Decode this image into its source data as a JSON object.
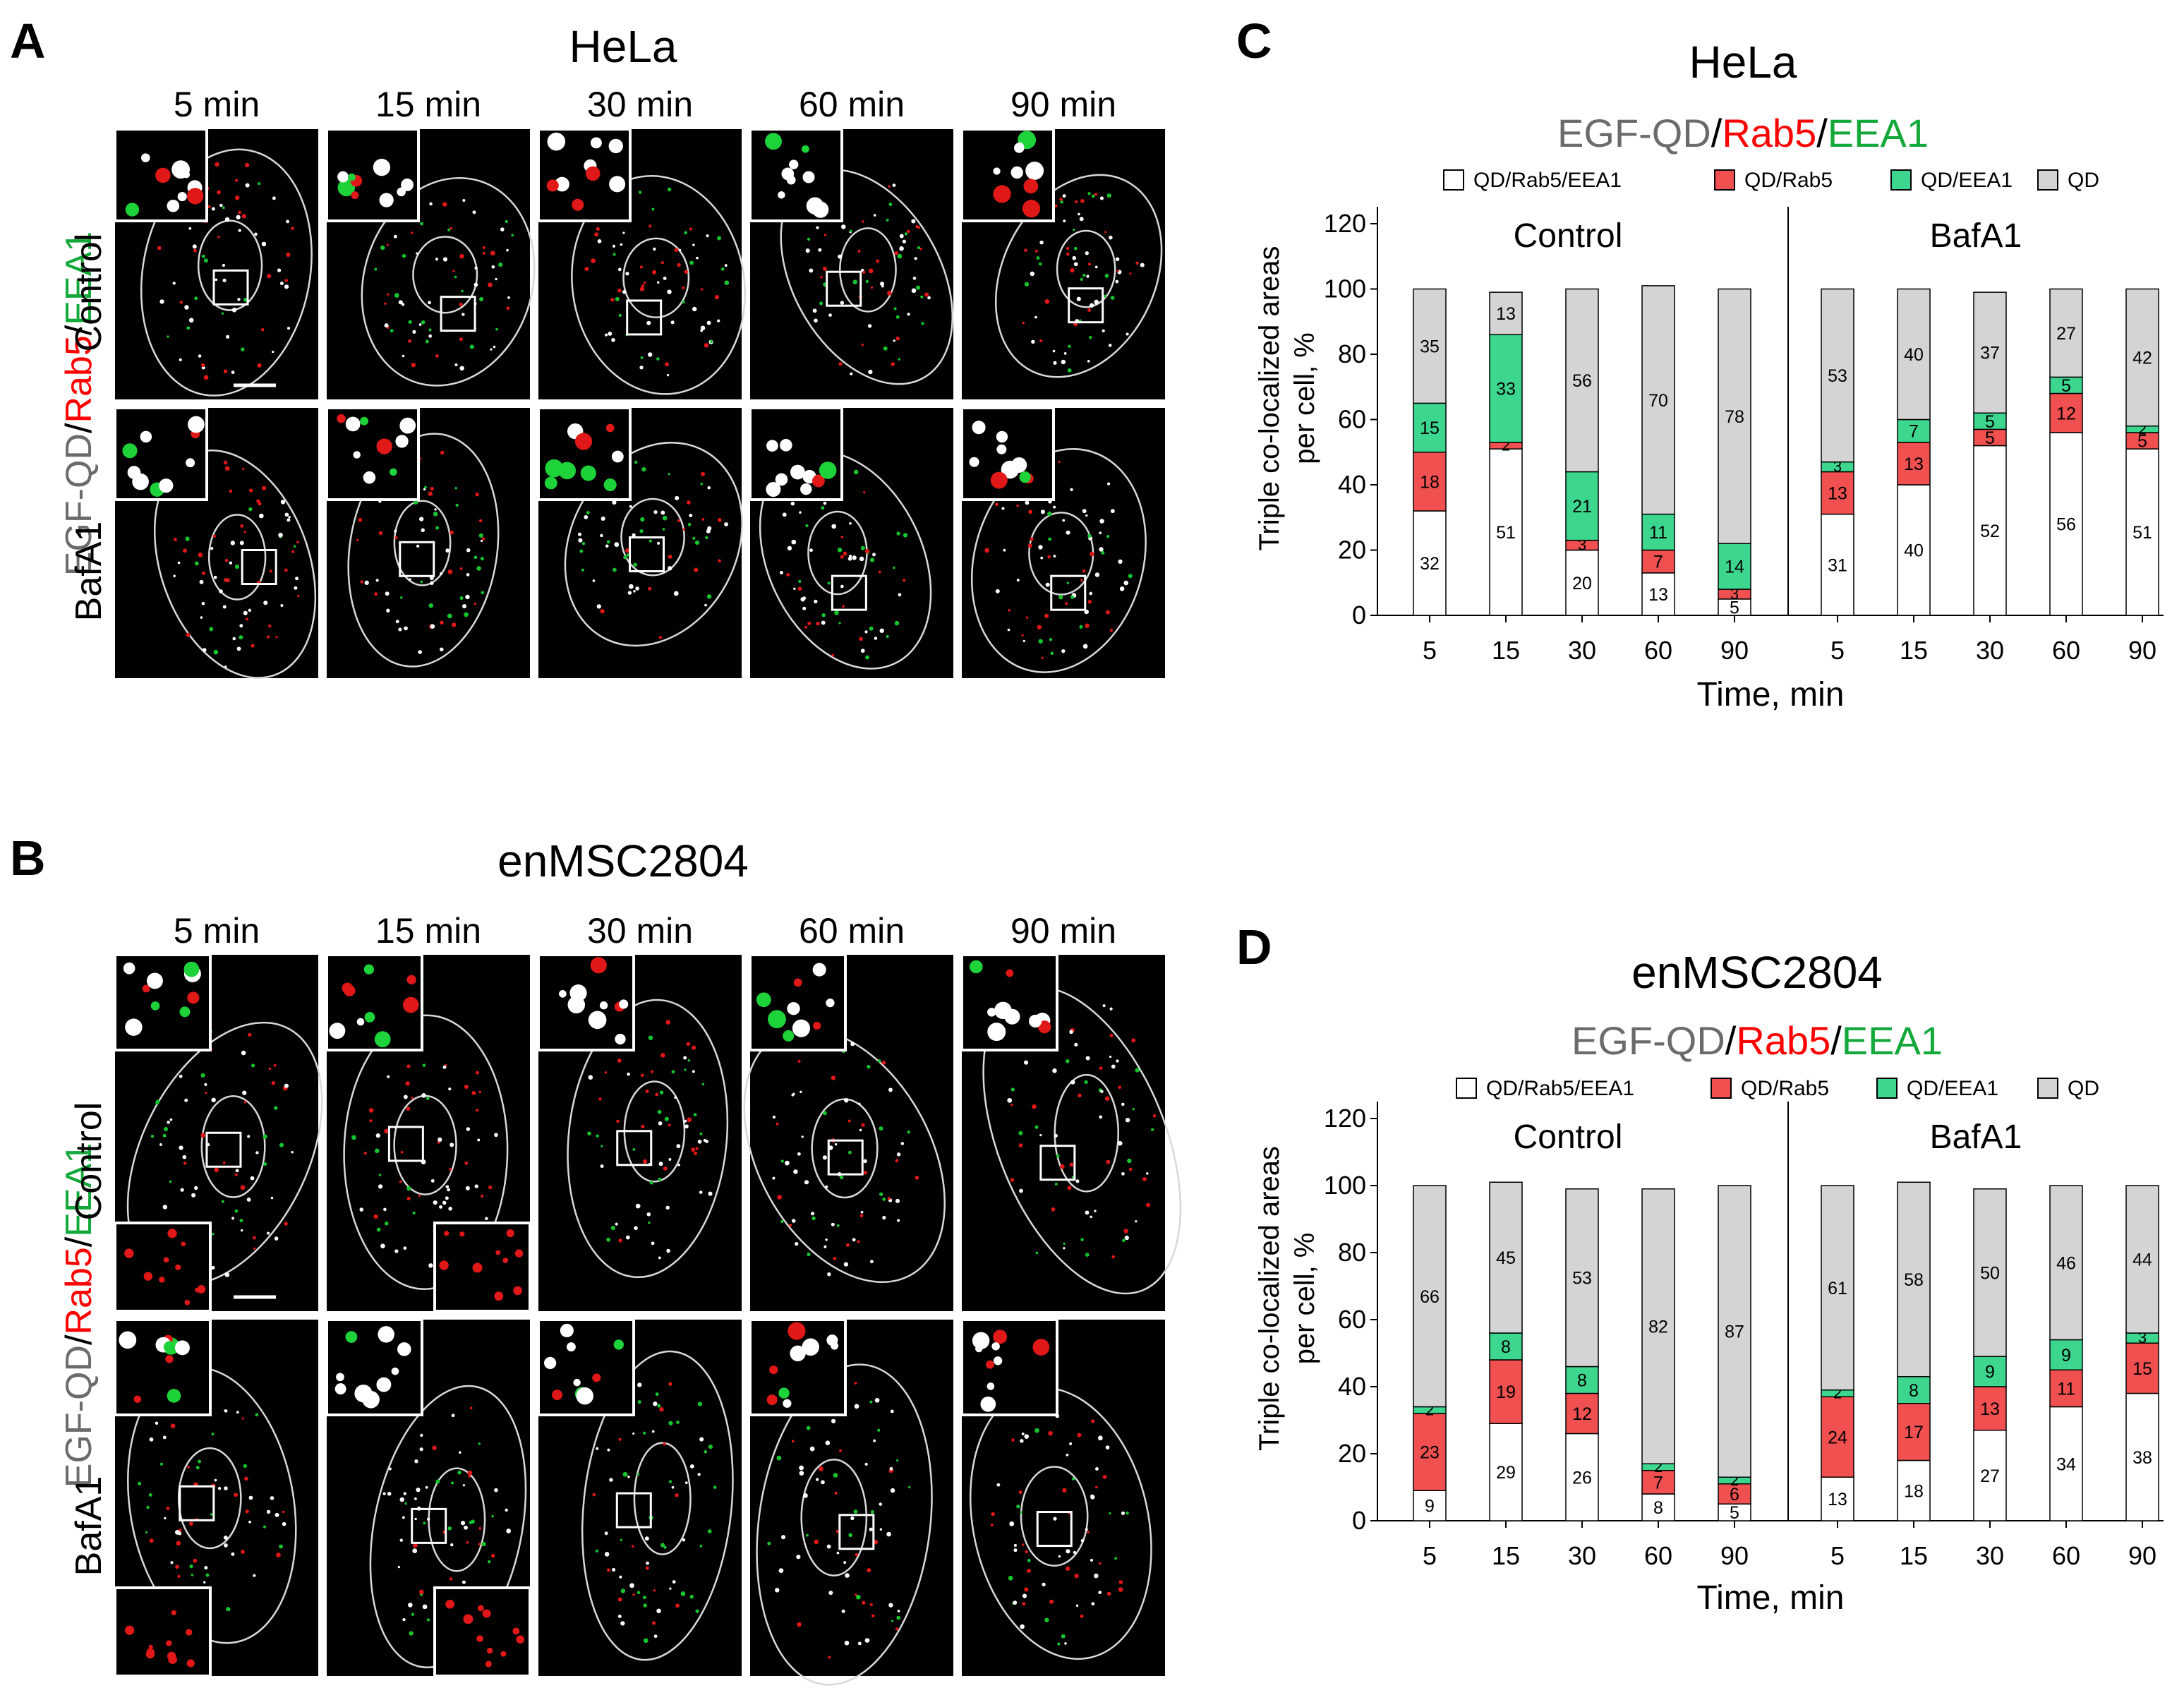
{
  "colors": {
    "grey": "#6b6b6b",
    "red": "#ff0000",
    "green": "#14a83b",
    "seg_white": "#ffffff",
    "seg_red": "#f05050",
    "seg_green": "#3dd68f",
    "seg_grey": "#d4d4d4",
    "micro_bg": "#000000",
    "outline": "#d9d9d9"
  },
  "panels": {
    "a": {
      "letter": "A",
      "title": "HeLa",
      "times": [
        "5 min",
        "15 min",
        "30 min",
        "60 min",
        "90 min"
      ],
      "rows": [
        "Control",
        "BafA1"
      ]
    },
    "b": {
      "letter": "B",
      "title": "enMSC2804",
      "times": [
        "5 min",
        "15 min",
        "30 min",
        "60 min",
        "90 min"
      ],
      "rows": [
        "Control",
        "BafA1"
      ]
    },
    "c": {
      "letter": "C"
    },
    "d": {
      "letter": "D"
    }
  },
  "stain_label": {
    "part1": "EGF-QD",
    "sep": "/",
    "part2": "Rab5",
    "part3": "EEA1"
  },
  "chart_data": [
    {
      "type": "bar",
      "stacked": true,
      "title": "HeLa",
      "subtitle": {
        "part1": "EGF-QD",
        "sep": "/",
        "part2": "Rab5",
        "part3": "EEA1"
      },
      "xlabel": "Time, min",
      "ylabel_line1": "Triple co-localized areas",
      "ylabel_line2": "per cell, %",
      "ylim": [
        0,
        120
      ],
      "yticks": [
        "0",
        "20",
        "40",
        "60",
        "80",
        "100",
        "120"
      ],
      "legend": [
        "QD/Rab5/EEA1",
        "QD/Rab5",
        "QD/EEA1",
        "QD"
      ],
      "legend_position": "top",
      "groups": [
        {
          "name": "Control",
          "categories": [
            "5",
            "15",
            "30",
            "60",
            "90"
          ],
          "series": [
            {
              "name": "QD/Rab5/EEA1",
              "values": [
                32,
                51,
                20,
                13,
                5
              ]
            },
            {
              "name": "QD/Rab5",
              "values": [
                18,
                2,
                3,
                7,
                3
              ]
            },
            {
              "name": "QD/EEA1",
              "values": [
                15,
                33,
                21,
                11,
                14
              ]
            },
            {
              "name": "QD",
              "values": [
                35,
                13,
                56,
                70,
                78
              ]
            }
          ]
        },
        {
          "name": "BafA1",
          "categories": [
            "5",
            "15",
            "30",
            "60",
            "90"
          ],
          "series": [
            {
              "name": "QD/Rab5/EEA1",
              "values": [
                31,
                40,
                52,
                56,
                51
              ]
            },
            {
              "name": "QD/Rab5",
              "values": [
                13,
                13,
                5,
                12,
                5
              ]
            },
            {
              "name": "QD/EEA1",
              "values": [
                3,
                7,
                5,
                5,
                2
              ]
            },
            {
              "name": "QD",
              "values": [
                53,
                40,
                37,
                27,
                42
              ]
            }
          ]
        }
      ]
    },
    {
      "type": "bar",
      "stacked": true,
      "title": "enMSC2804",
      "subtitle": {
        "part1": "EGF-QD",
        "sep": "/",
        "part2": "Rab5",
        "part3": "EEA1"
      },
      "xlabel": "Time, min",
      "ylabel_line1": "Triple co-localized areas",
      "ylabel_line2": "per cell, %",
      "ylim": [
        0,
        120
      ],
      "yticks": [
        "0",
        "20",
        "40",
        "60",
        "80",
        "100",
        "120"
      ],
      "legend": [
        "QD/Rab5/EEA1",
        "QD/Rab5",
        "QD/EEA1",
        "QD"
      ],
      "legend_position": "top",
      "groups": [
        {
          "name": "Control",
          "categories": [
            "5",
            "15",
            "30",
            "60",
            "90"
          ],
          "series": [
            {
              "name": "QD/Rab5/EEA1",
              "values": [
                9,
                29,
                26,
                8,
                5
              ]
            },
            {
              "name": "QD/Rab5",
              "values": [
                23,
                19,
                12,
                7,
                6
              ]
            },
            {
              "name": "QD/EEA1",
              "values": [
                2,
                8,
                8,
                2,
                2
              ]
            },
            {
              "name": "QD",
              "values": [
                66,
                45,
                53,
                82,
                87
              ]
            }
          ]
        },
        {
          "name": "BafA1",
          "categories": [
            "5",
            "15",
            "30",
            "60",
            "90"
          ],
          "series": [
            {
              "name": "QD/Rab5/EEA1",
              "values": [
                13,
                18,
                27,
                34,
                38
              ]
            },
            {
              "name": "QD/Rab5",
              "values": [
                24,
                17,
                13,
                11,
                15
              ]
            },
            {
              "name": "QD/EEA1",
              "values": [
                2,
                8,
                9,
                9,
                3
              ]
            },
            {
              "name": "QD",
              "values": [
                61,
                58,
                50,
                46,
                44
              ]
            }
          ]
        }
      ]
    }
  ]
}
